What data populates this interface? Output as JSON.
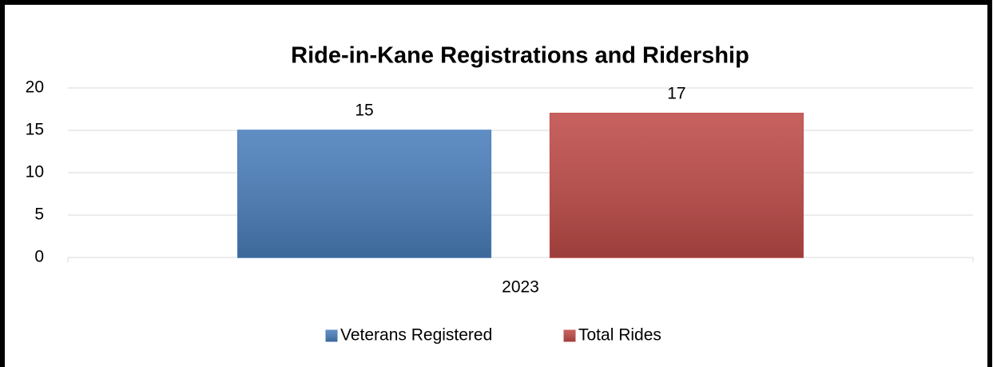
{
  "chart_data": {
    "type": "bar",
    "title": "Ride-in-Kane Registrations and Ridership",
    "categories": [
      "2023"
    ],
    "series": [
      {
        "name": "Veterans Registered",
        "color": "#4a7ebb",
        "values": [
          15
        ]
      },
      {
        "name": "Total Rides",
        "color": "#be4b48",
        "values": [
          17
        ]
      }
    ],
    "ylim": [
      0,
      20
    ],
    "yticks": [
      0,
      5,
      10,
      15,
      20
    ],
    "grid": true,
    "legend": "bottom"
  }
}
